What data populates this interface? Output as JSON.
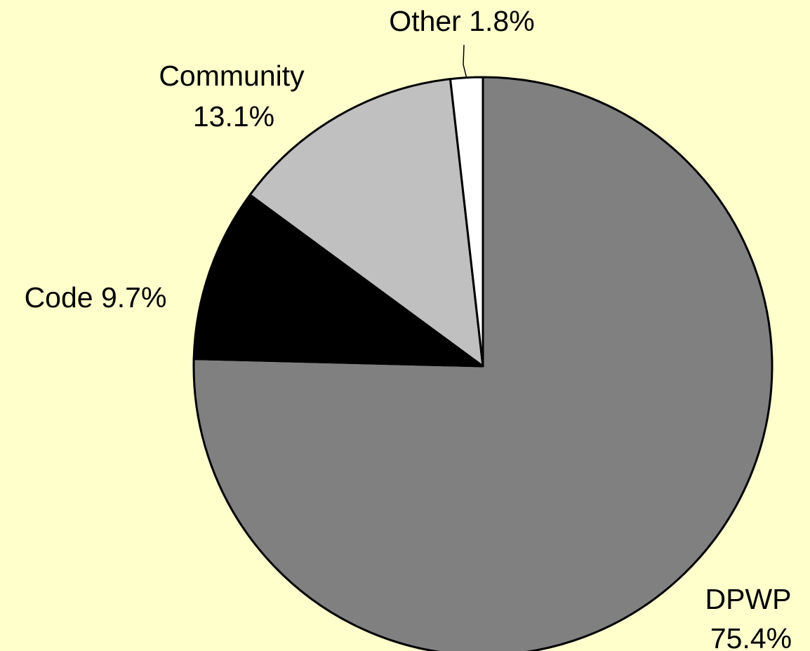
{
  "chart_data": {
    "type": "pie",
    "background": "#ffffcc",
    "slices": [
      {
        "label": "DPWP",
        "percent_label": "75.4%",
        "value": 75.4,
        "color": "#808080"
      },
      {
        "label": "Code",
        "percent_label": "9.7%",
        "value": 9.7,
        "color": "#000000"
      },
      {
        "label": "Community",
        "percent_label": "13.1%",
        "value": 13.1,
        "color": "#c0c0c0"
      },
      {
        "label": "Other",
        "percent_label": "1.8%",
        "value": 1.8,
        "color": "#ffffff"
      }
    ],
    "start_angle": "12 o'clock",
    "direction": "clockwise"
  }
}
